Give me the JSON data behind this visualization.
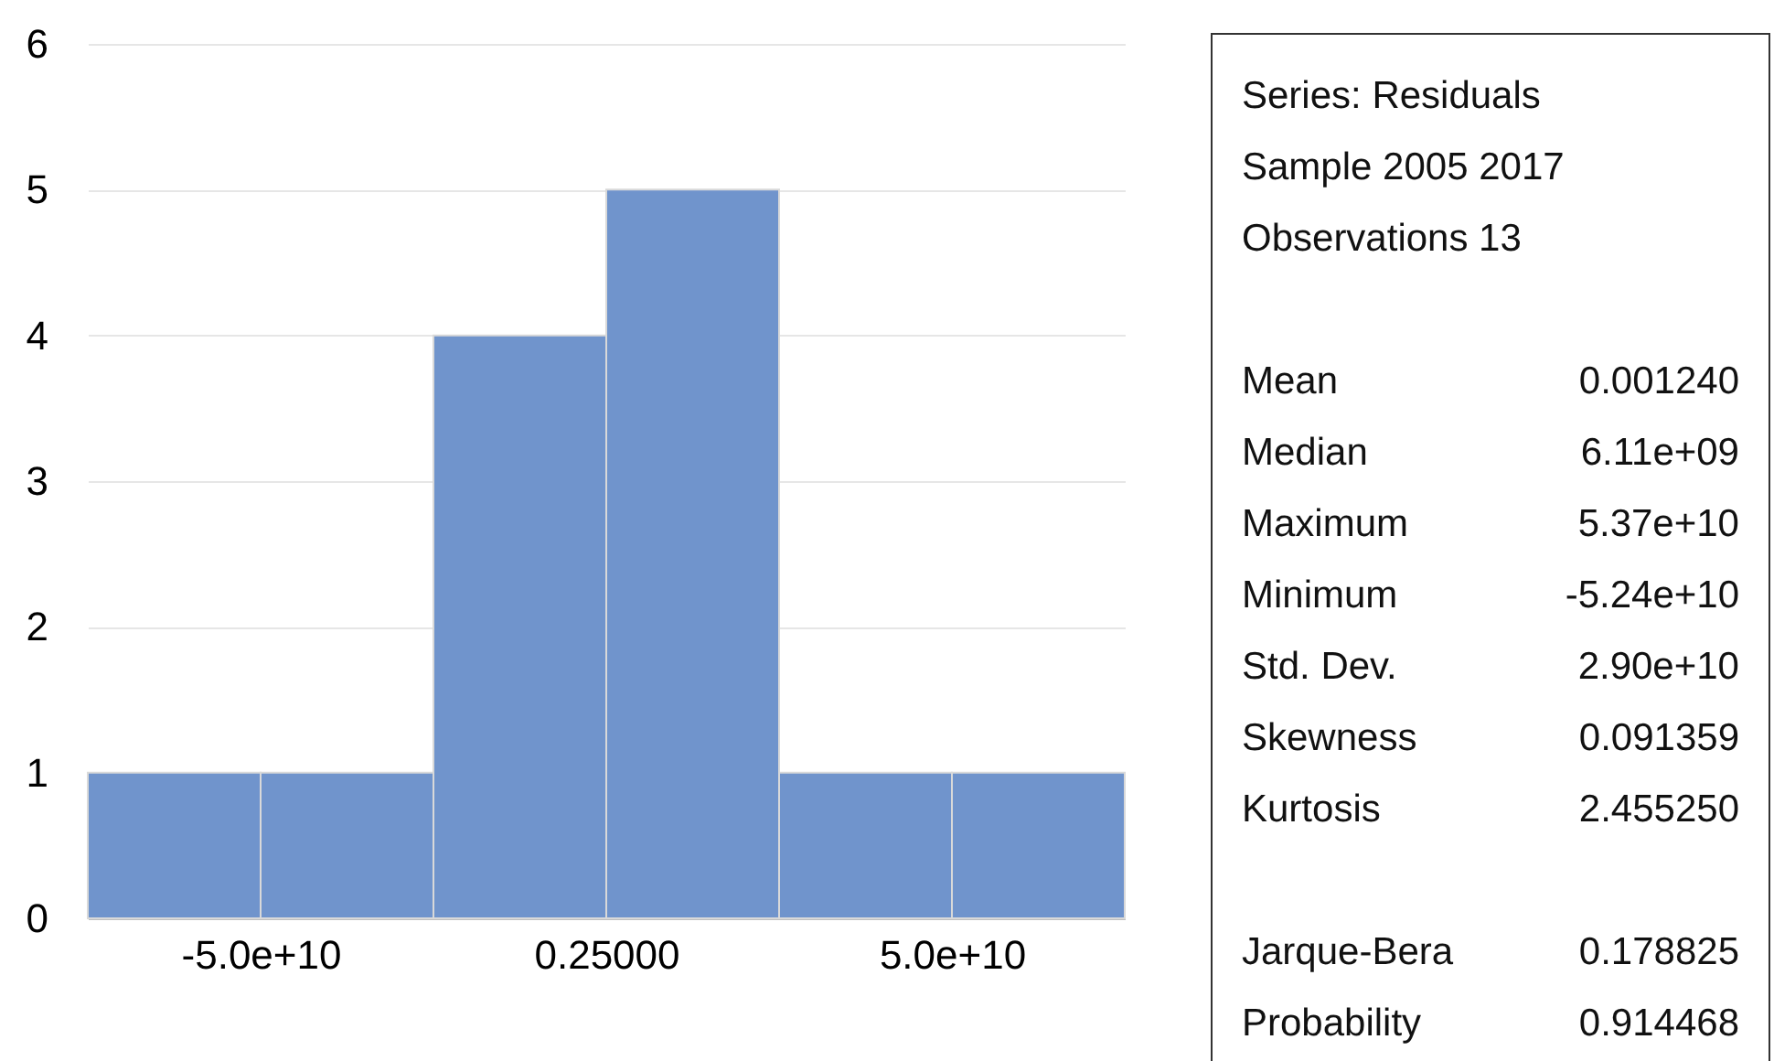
{
  "chart_data": {
    "type": "histogram",
    "bins": [
      -75000000000,
      -50000000000,
      -25000000000,
      0,
      25000000000,
      50000000000,
      75000000000
    ],
    "values": [
      1,
      1,
      4,
      5,
      1,
      1
    ],
    "color": "#7094cc",
    "xlim": [
      -75000000000,
      75000000000
    ],
    "xticks": [
      {
        "value": -50000000000,
        "label": "-5.0e+10"
      },
      {
        "value": 0.25,
        "label": "0.25000"
      },
      {
        "value": 50000000000,
        "label": "5.0e+10"
      }
    ],
    "ylim": [
      0,
      6
    ],
    "yticks": [
      0,
      1,
      2,
      3,
      4,
      5,
      6
    ],
    "grid": "y",
    "annotations": [
      "Series: Residuals",
      "Sample 2005 2017",
      "Observations 13",
      "Mean 0.001240",
      "Median 6.11e+09",
      "Maximum 5.37e+10",
      "Minimum -5.24e+10",
      "Std. Dev. 2.90e+10",
      "Skewness 0.091359",
      "Kurtosis 2.455250",
      "Jarque-Bera 0.178825",
      "Probability 0.914468"
    ]
  }
}
